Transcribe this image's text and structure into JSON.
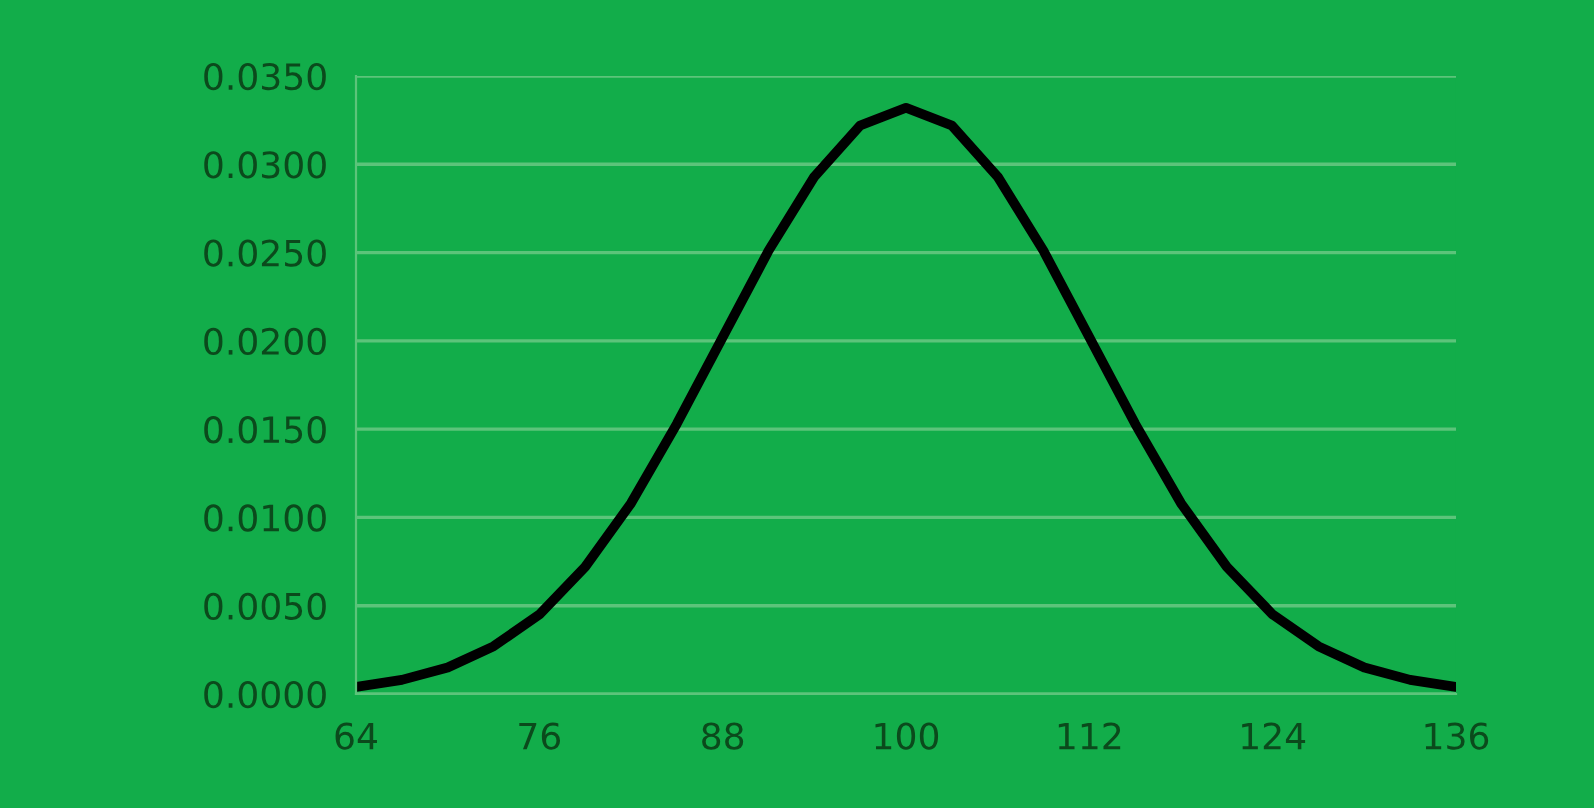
{
  "chart_data": {
    "type": "line",
    "x": [
      64,
      67,
      70,
      73,
      76,
      79,
      82,
      85,
      88,
      91,
      94,
      97,
      100,
      103,
      106,
      109,
      112,
      115,
      118,
      121,
      124,
      127,
      130,
      133,
      136
    ],
    "series": [
      {
        "color": "#000000",
        "values": [
          0.0004,
          0.0008,
          0.0015,
          0.0027,
          0.0045,
          0.0072,
          0.0108,
          0.0153,
          0.0202,
          0.0251,
          0.0293,
          0.0322,
          0.0332,
          0.0322,
          0.0293,
          0.0251,
          0.0202,
          0.0153,
          0.0108,
          0.0072,
          0.0045,
          0.0027,
          0.0015,
          0.0008,
          0.0004
        ]
      }
    ],
    "xlim": [
      64,
      136
    ],
    "xticks": [
      64,
      76,
      88,
      100,
      112,
      124,
      136
    ],
    "ylim": [
      0,
      0.035
    ],
    "yticks": [
      {
        "value": 0,
        "label": "0.0000"
      },
      {
        "value": 0.005,
        "label": "0.0050"
      },
      {
        "value": 0.01,
        "label": "0.0100"
      },
      {
        "value": 0.015,
        "label": "0.0150"
      },
      {
        "value": 0.02,
        "label": "0.0200"
      },
      {
        "value": 0.025,
        "label": "0.0250"
      },
      {
        "value": 0.03,
        "label": "0.0300"
      },
      {
        "value": 0.035,
        "label": "0.0350"
      }
    ],
    "grid": "y",
    "marker": "none",
    "line_style": "solid",
    "legend": false
  }
}
